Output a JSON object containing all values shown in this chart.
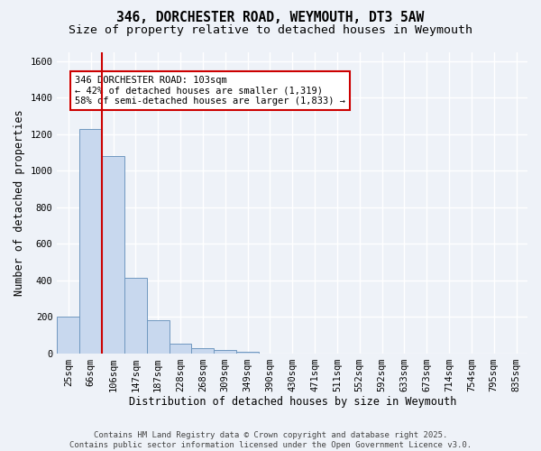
{
  "title_line1": "346, DORCHESTER ROAD, WEYMOUTH, DT3 5AW",
  "title_line2": "Size of property relative to detached houses in Weymouth",
  "xlabel": "Distribution of detached houses by size in Weymouth",
  "ylabel": "Number of detached properties",
  "bar_labels": [
    "25sqm",
    "66sqm",
    "106sqm",
    "147sqm",
    "187sqm",
    "228sqm",
    "268sqm",
    "309sqm",
    "349sqm",
    "390sqm",
    "430sqm",
    "471sqm",
    "511sqm",
    "552sqm",
    "592sqm",
    "633sqm",
    "673sqm",
    "714sqm",
    "754sqm",
    "795sqm",
    "835sqm"
  ],
  "bar_values": [
    200,
    1230,
    1080,
    415,
    180,
    50,
    27,
    18,
    10,
    0,
    0,
    0,
    0,
    0,
    0,
    0,
    0,
    0,
    0,
    0,
    0
  ],
  "bar_color": "#c8d8ee",
  "bar_edge_color": "#7098c0",
  "ylim": [
    0,
    1650
  ],
  "yticks": [
    0,
    200,
    400,
    600,
    800,
    1000,
    1200,
    1400,
    1600
  ],
  "vline_color": "#cc0000",
  "vline_x_index": 1.5,
  "annotation_box_text": "346 DORCHESTER ROAD: 103sqm\n← 42% of detached houses are smaller (1,319)\n58% of semi-detached houses are larger (1,833) →",
  "footer_line1": "Contains HM Land Registry data © Crown copyright and database right 2025.",
  "footer_line2": "Contains public sector information licensed under the Open Government Licence v3.0.",
  "background_color": "#eef2f8",
  "grid_color": "#ffffff",
  "title_fontsize": 10.5,
  "subtitle_fontsize": 9.5,
  "axis_label_fontsize": 8.5,
  "tick_fontsize": 7.5,
  "footer_fontsize": 6.5,
  "annot_fontsize": 7.5
}
